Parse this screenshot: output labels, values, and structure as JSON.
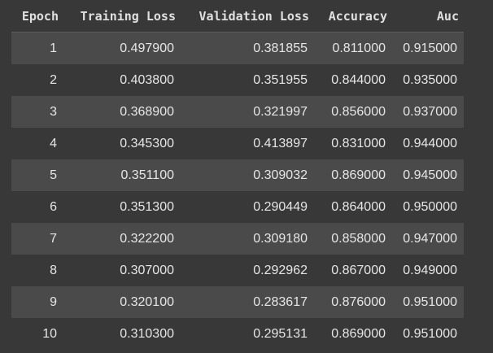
{
  "table": {
    "headers": [
      "Epoch",
      "Training Loss",
      "Validation Loss",
      "Accuracy",
      "Auc"
    ],
    "rows": [
      [
        "1",
        "0.497900",
        "0.381855",
        "0.811000",
        "0.915000"
      ],
      [
        "2",
        "0.403800",
        "0.351955",
        "0.844000",
        "0.935000"
      ],
      [
        "3",
        "0.368900",
        "0.321997",
        "0.856000",
        "0.937000"
      ],
      [
        "4",
        "0.345300",
        "0.413897",
        "0.831000",
        "0.944000"
      ],
      [
        "5",
        "0.351100",
        "0.309032",
        "0.869000",
        "0.945000"
      ],
      [
        "6",
        "0.351300",
        "0.290449",
        "0.864000",
        "0.950000"
      ],
      [
        "7",
        "0.322200",
        "0.309180",
        "0.858000",
        "0.947000"
      ],
      [
        "8",
        "0.307000",
        "0.292962",
        "0.867000",
        "0.949000"
      ],
      [
        "9",
        "0.320100",
        "0.283617",
        "0.876000",
        "0.951000"
      ],
      [
        "10",
        "0.310300",
        "0.295131",
        "0.869000",
        "0.951000"
      ]
    ]
  }
}
